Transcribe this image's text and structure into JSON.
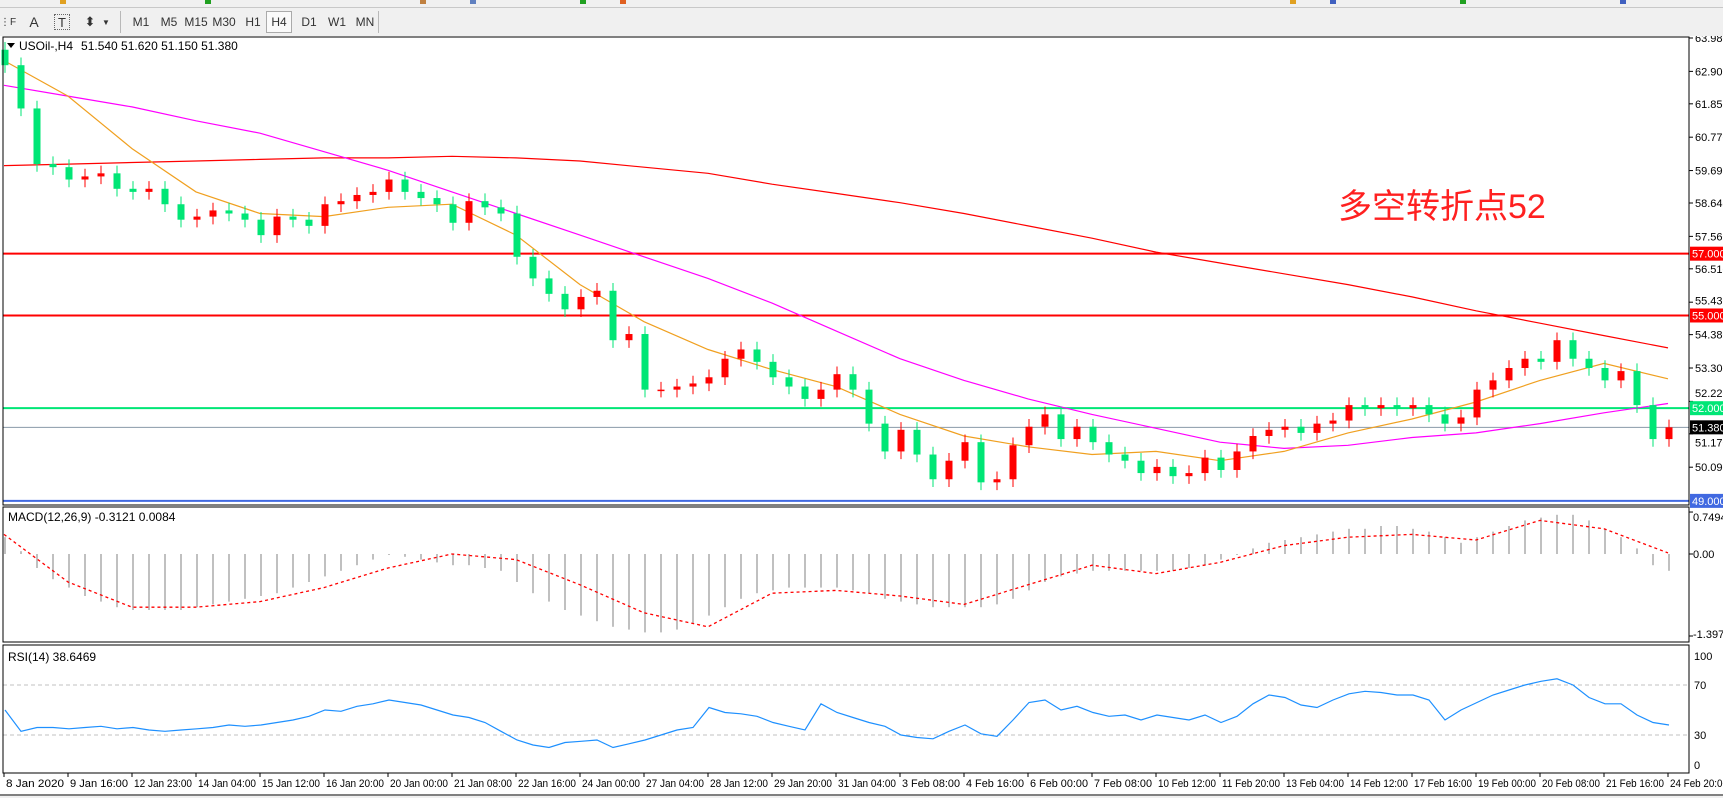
{
  "toolbar": {
    "tools": [
      {
        "name": "grid-f-icon",
        "glyph": "⋮F"
      },
      {
        "name": "text-icon",
        "glyph": "A"
      },
      {
        "name": "text-label-icon",
        "glyph": "T"
      },
      {
        "name": "arrows-icon",
        "glyph": "⬍"
      }
    ],
    "timeframes": [
      "M1",
      "M5",
      "M15",
      "M30",
      "H1",
      "H4",
      "D1",
      "W1",
      "MN"
    ],
    "active_timeframe": "H4"
  },
  "chart": {
    "symbol_title": "USOil-,H4",
    "ohlc": "51.540 51.620 51.150 51.380",
    "annotation": "多空转折点52",
    "annotation_color": "#ff2020",
    "macd_title": "MACD(12,26,9) -0.3121 0.0084",
    "rsi_title": "RSI(14) 38.6469",
    "colors": {
      "bull": "#ff0000",
      "bear": "#00e676",
      "ma_fast": "#f0a020",
      "ma_mid": "#ff00ff",
      "ma_slow": "#ff0000",
      "macd_hist": "#c0c0c0",
      "macd_signal": "#ff0000",
      "rsi": "#1e90ff"
    }
  },
  "chart_data": [
    {
      "type": "candlestick",
      "title": "USOil-,H4",
      "ylim": [
        49.0,
        63.98
      ],
      "price_ticks": [
        "63.980",
        "62.900",
        "61.850",
        "60.770",
        "59.690",
        "58.640",
        "57.560",
        "56.510",
        "55.430",
        "54.380",
        "53.300",
        "52.220",
        "51.170",
        "50.090"
      ],
      "x_tick_labels": [
        "8 Jan 2020",
        "9 Jan 16:00",
        "12 Jan 23:00",
        "14 Jan 04:00",
        "15 Jan 12:00",
        "16 Jan 20:00",
        "20 Jan 00:00",
        "21 Jan 08:00",
        "22 Jan 16:00",
        "24 Jan 00:00",
        "27 Jan 04:00",
        "28 Jan 12:00",
        "29 Jan 20:00",
        "31 Jan 04:00",
        "3 Feb 08:00",
        "4 Feb 16:00",
        "6 Feb 00:00",
        "7 Feb 08:00",
        "10 Feb 12:00",
        "11 Feb 20:00",
        "13 Feb 04:00",
        "14 Feb 12:00",
        "17 Feb 16:00",
        "19 Feb 00:00",
        "20 Feb 08:00",
        "21 Feb 16:00",
        "24 Feb 20:00"
      ],
      "first_open": 63.6,
      "closes": [
        63.1,
        61.7,
        59.9,
        59.8,
        59.4,
        59.5,
        59.6,
        59.1,
        59.0,
        59.1,
        58.6,
        58.1,
        58.2,
        58.4,
        58.3,
        58.1,
        57.6,
        58.2,
        58.1,
        57.9,
        58.6,
        58.7,
        58.9,
        59.0,
        59.4,
        59.0,
        58.8,
        58.6,
        58.0,
        58.7,
        58.5,
        58.3,
        56.9,
        56.2,
        55.7,
        55.2,
        55.6,
        55.8,
        54.2,
        54.4,
        52.6,
        52.6,
        52.7,
        52.8,
        53.0,
        53.6,
        53.9,
        53.5,
        53.0,
        52.7,
        52.3,
        52.6,
        53.1,
        52.6,
        51.5,
        50.6,
        51.3,
        50.5,
        49.7,
        50.3,
        50.9,
        49.6,
        49.7,
        50.8,
        51.4,
        51.8,
        51.0,
        51.4,
        50.9,
        50.5,
        50.3,
        49.9,
        50.1,
        49.8,
        49.9,
        50.4,
        50.0,
        50.6,
        51.1,
        51.3,
        51.4,
        51.2,
        51.5,
        51.6,
        52.1,
        52.0,
        52.1,
        52.0,
        52.1,
        51.8,
        51.5,
        51.7,
        52.6,
        52.9,
        53.3,
        53.6,
        53.5,
        54.2,
        53.6,
        53.3,
        52.9,
        53.2,
        52.1,
        51.0,
        51.38
      ],
      "moving_averages_at_ticks": {
        "fast": [
          63.25,
          62.1,
          60.4,
          59.0,
          58.3,
          58.2,
          58.5,
          58.6,
          57.6,
          56.0,
          54.8,
          53.9,
          53.25,
          52.7,
          51.8,
          51.1,
          50.75,
          50.5,
          50.6,
          50.3,
          50.6,
          51.2,
          51.65,
          52.2,
          52.9,
          53.45,
          52.95
        ],
        "mid": [
          62.45,
          62.1,
          61.75,
          61.3,
          60.9,
          60.3,
          59.7,
          59.0,
          58.3,
          57.6,
          56.9,
          56.2,
          55.4,
          54.5,
          53.6,
          52.9,
          52.3,
          51.8,
          51.35,
          50.9,
          50.7,
          50.8,
          51.05,
          51.2,
          51.5,
          51.85,
          52.15
        ],
        "slow": [
          59.85,
          59.9,
          59.95,
          60.0,
          60.05,
          60.1,
          60.1,
          60.15,
          60.1,
          60.0,
          59.8,
          59.6,
          59.25,
          58.95,
          58.65,
          58.3,
          57.9,
          57.5,
          57.05,
          56.7,
          56.35,
          56.0,
          55.6,
          55.15,
          54.75,
          54.35,
          53.95
        ]
      },
      "horizontal_lines": [
        {
          "price": 57.0,
          "label": "57.000",
          "color": "#ff0000"
        },
        {
          "price": 55.0,
          "label": "55.000",
          "color": "#ff0000"
        },
        {
          "price": 52.0,
          "label": "52.000",
          "color": "#00e676"
        },
        {
          "price": 51.38,
          "label": "51.380",
          "color": "#8a9aa8",
          "label_bg": "#000000"
        },
        {
          "price": 49.0,
          "label": "49.000",
          "color": "#4169e1"
        }
      ]
    },
    {
      "type": "bar",
      "title": "MACD(12,26,9) -0.3121 0.0084",
      "ylim": [
        -1.3973,
        0.7494
      ],
      "y_tick_labels": [
        "0.7494",
        "0.00",
        "-1.3973"
      ],
      "histogram": [
        0.3,
        0.05,
        -0.25,
        -0.45,
        -0.6,
        -0.75,
        -0.85,
        -0.95,
        -1.0,
        -1.0,
        -1.0,
        -1.0,
        -0.95,
        -0.9,
        -0.85,
        -0.8,
        -0.75,
        -0.7,
        -0.6,
        -0.5,
        -0.4,
        -0.3,
        -0.2,
        -0.1,
        0.0,
        -0.05,
        -0.1,
        -0.15,
        -0.2,
        -0.2,
        -0.25,
        -0.3,
        -0.5,
        -0.7,
        -0.85,
        -1.0,
        -1.1,
        -1.2,
        -1.3,
        -1.35,
        -1.4,
        -1.4,
        -1.35,
        -1.25,
        -1.1,
        -0.95,
        -0.8,
        -0.7,
        -0.65,
        -0.6,
        -0.6,
        -0.6,
        -0.6,
        -0.65,
        -0.7,
        -0.8,
        -0.85,
        -0.9,
        -0.95,
        -0.95,
        -0.95,
        -0.95,
        -0.9,
        -0.8,
        -0.65,
        -0.5,
        -0.4,
        -0.35,
        -0.3,
        -0.3,
        -0.3,
        -0.3,
        -0.3,
        -0.3,
        -0.25,
        -0.2,
        -0.1,
        0.0,
        0.1,
        0.2,
        0.25,
        0.3,
        0.35,
        0.4,
        0.45,
        0.45,
        0.5,
        0.5,
        0.45,
        0.4,
        0.3,
        0.2,
        0.3,
        0.4,
        0.5,
        0.6,
        0.65,
        0.7,
        0.7,
        0.6,
        0.45,
        0.3,
        0.1,
        -0.2,
        -0.3
      ],
      "signal_at_ticks": [
        0.35,
        -0.5,
        -0.95,
        -0.95,
        -0.85,
        -0.6,
        -0.25,
        0.0,
        -0.1,
        -0.55,
        -1.05,
        -1.3,
        -0.7,
        -0.65,
        -0.75,
        -0.9,
        -0.55,
        -0.2,
        -0.35,
        -0.15,
        0.15,
        0.3,
        0.35,
        0.25,
        0.6,
        0.45,
        0.02
      ]
    },
    {
      "type": "line",
      "title": "RSI(14) 38.6469",
      "ylim": [
        0,
        100
      ],
      "y_tick_labels": [
        "100",
        "70",
        "30",
        "0"
      ],
      "levels": [
        70,
        30
      ],
      "values": [
        50,
        33,
        36,
        36,
        35,
        36,
        37,
        35,
        36,
        34,
        33,
        34,
        35,
        36,
        38,
        37,
        38,
        40,
        42,
        45,
        50,
        49,
        53,
        55,
        58,
        56,
        54,
        50,
        46,
        44,
        40,
        33,
        26,
        22,
        20,
        24,
        25,
        26,
        20,
        23,
        26,
        30,
        34,
        36,
        52,
        48,
        47,
        45,
        40,
        37,
        34,
        55,
        48,
        44,
        40,
        37,
        30,
        28,
        27,
        33,
        38,
        31,
        29,
        42,
        56,
        58,
        50,
        53,
        48,
        45,
        46,
        42,
        46,
        44,
        42,
        46,
        40,
        45,
        55,
        62,
        60,
        54,
        52,
        58,
        63,
        65,
        64,
        62,
        62,
        58,
        42,
        50,
        56,
        62,
        66,
        70,
        73,
        75,
        70,
        60,
        55,
        55,
        46,
        40,
        38
      ]
    }
  ]
}
